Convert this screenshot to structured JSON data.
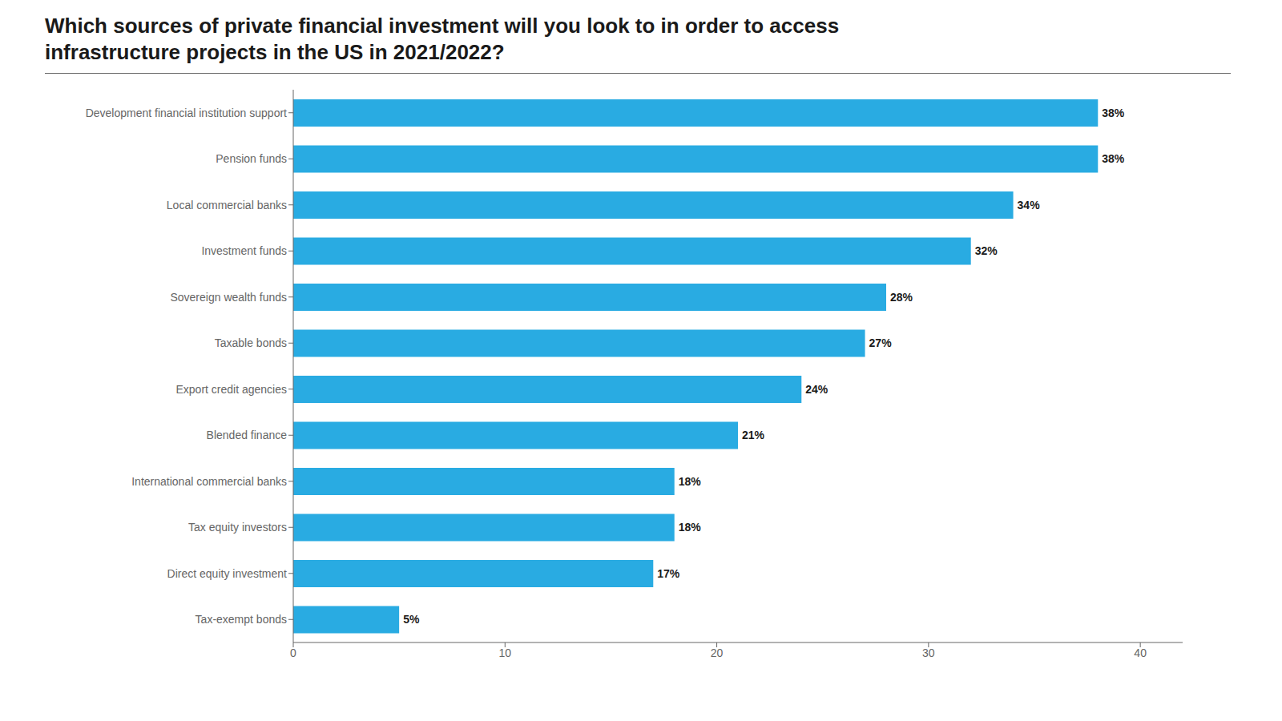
{
  "chart_data": {
    "type": "bar",
    "title": "Which sources of private financial investment will you look to in order to access infrastructure projects in the US in 2021/2022?",
    "categories": [
      "Development financial institution support",
      "Pension funds",
      "Local commercial banks",
      "Investment funds",
      "Sovereign wealth funds",
      "Taxable bonds",
      "Export credit agencies",
      "Blended finance",
      "International commercial banks",
      "Tax equity investors",
      "Direct equity investment",
      "Tax-exempt bonds"
    ],
    "values": [
      38,
      38,
      34,
      32,
      28,
      27,
      24,
      21,
      18,
      18,
      17,
      5
    ],
    "value_labels": [
      "38%",
      "38%",
      "34%",
      "32%",
      "28%",
      "27%",
      "24%",
      "21%",
      "18%",
      "18%",
      "17%",
      "5%"
    ],
    "color": "#29ABE2",
    "orientation": "horizontal",
    "data_labels": true,
    "grid": false,
    "xlim": [
      0,
      42
    ],
    "xticks": [
      0,
      10,
      20,
      30,
      40
    ]
  }
}
